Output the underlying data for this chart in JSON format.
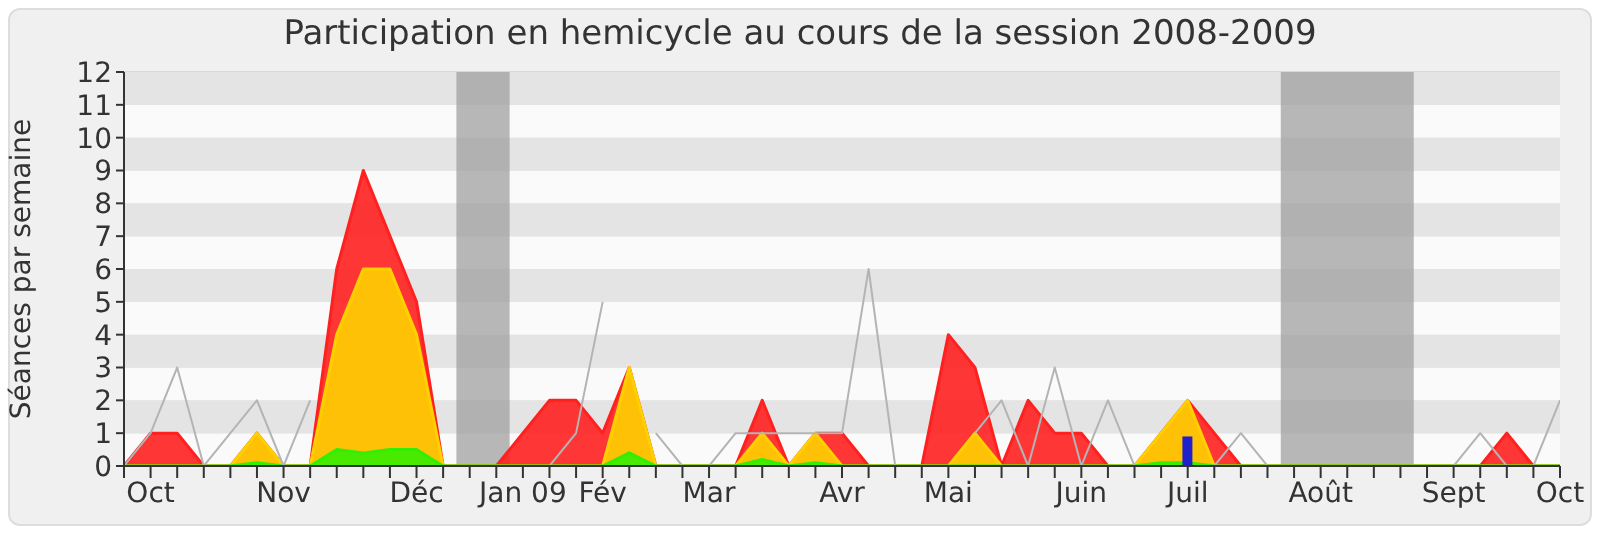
{
  "chart_data": {
    "type": "area",
    "title": "Participation en hemicycle au cours de la session 2008-2009",
    "ylabel": "Séances par semaine",
    "categories": [
      null,
      "Oct",
      null,
      null,
      null,
      null,
      "Nov",
      null,
      null,
      null,
      null,
      "Déc",
      null,
      null,
      null,
      "Jan 09",
      null,
      null,
      "Fév",
      null,
      null,
      null,
      "Mar",
      null,
      null,
      null,
      null,
      "Avr",
      null,
      null,
      null,
      "Mai",
      null,
      null,
      null,
      null,
      "Juin",
      null,
      null,
      null,
      "Juil",
      null,
      null,
      null,
      null,
      "Août",
      null,
      null,
      null,
      null,
      "Sept",
      null,
      null,
      null,
      "Oct"
    ],
    "ylim": [
      0,
      12
    ],
    "yticks": [
      0,
      1,
      2,
      3,
      4,
      5,
      6,
      7,
      8,
      9,
      10,
      11,
      12
    ],
    "grid": "y",
    "series": [
      {
        "type": "line",
        "color": "#b4b4b4",
        "values": [
          0,
          1,
          3,
          0,
          1,
          2,
          0,
          2,
          null,
          null,
          null,
          null,
          null,
          null,
          null,
          null,
          0,
          1,
          5,
          null,
          1,
          0,
          0,
          1,
          1,
          1,
          1,
          1,
          6,
          0,
          0,
          null,
          1,
          2,
          0,
          3,
          0,
          2,
          0,
          null,
          null,
          0,
          1,
          0,
          0,
          0,
          0,
          0,
          0,
          0,
          0,
          1,
          0,
          0,
          2
        ]
      },
      {
        "color": "#ff2020",
        "values": [
          0,
          1,
          1,
          0,
          0,
          1,
          0,
          0,
          6,
          9,
          7,
          5,
          0,
          0,
          0,
          1,
          2,
          2,
          1,
          3,
          0,
          0,
          0,
          0,
          2,
          0,
          1,
          1,
          0,
          0,
          0,
          4,
          3,
          0,
          2,
          1,
          1,
          0,
          0,
          1,
          2,
          1,
          0,
          0,
          0,
          0,
          0,
          0,
          0,
          0,
          0,
          0,
          1,
          0,
          0
        ]
      },
      {
        "color": "#ffd000",
        "values": [
          0,
          0,
          0,
          0,
          0,
          1,
          0,
          0,
          4,
          6,
          6,
          4,
          0,
          0,
          0,
          0,
          0,
          0,
          0,
          3,
          0,
          0,
          0,
          0,
          1,
          0,
          1,
          0,
          0,
          0,
          0,
          0,
          1,
          0,
          0,
          0,
          0,
          0,
          0,
          1,
          2,
          0,
          0,
          0,
          0,
          0,
          0,
          0,
          0,
          0,
          0,
          0,
          0,
          0,
          0
        ]
      },
      {
        "color": "#33ee00",
        "values": [
          0,
          0,
          0,
          0,
          0,
          0.1,
          0,
          0,
          0.5,
          0.4,
          0.5,
          0.5,
          0,
          0,
          0,
          0,
          0,
          0,
          0,
          0.4,
          0,
          0,
          0,
          0,
          0.2,
          0,
          0.1,
          0,
          0,
          0,
          0,
          0,
          0,
          0,
          0,
          0,
          0,
          0,
          0,
          0.1,
          0.1,
          0,
          0,
          0,
          0,
          0,
          0,
          0,
          0,
          0,
          0,
          0,
          0,
          0,
          0
        ]
      },
      {
        "type": "bar",
        "color": "#2020cc",
        "values": [
          null,
          null,
          null,
          null,
          null,
          null,
          null,
          null,
          null,
          null,
          null,
          null,
          null,
          null,
          null,
          null,
          null,
          null,
          null,
          null,
          null,
          null,
          null,
          null,
          null,
          null,
          null,
          null,
          null,
          null,
          null,
          null,
          null,
          null,
          null,
          null,
          null,
          null,
          null,
          null,
          0.9,
          null,
          null,
          null,
          null,
          null,
          null,
          null,
          null,
          null,
          null,
          null,
          null,
          null,
          null
        ]
      }
    ]
  }
}
